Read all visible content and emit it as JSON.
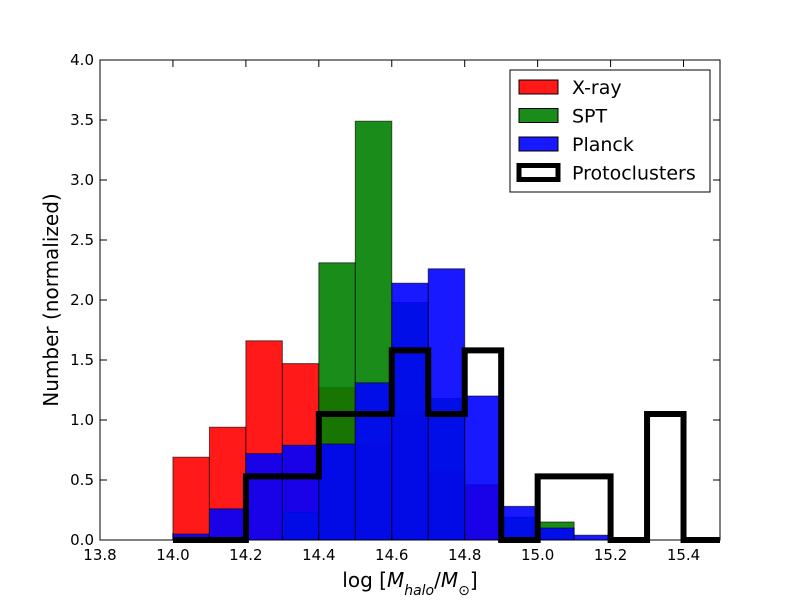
{
  "chart_data": {
    "type": "bar",
    "histogram": true,
    "xlabel": "log [M_halo/M_⊙]",
    "ylabel": "Number (normalized)",
    "xlim": [
      13.8,
      15.5
    ],
    "ylim": [
      0.0,
      4.0
    ],
    "xticks": [
      "13.8",
      "14.0",
      "14.2",
      "14.4",
      "14.6",
      "14.8",
      "15.0",
      "15.2",
      "15.4"
    ],
    "yticks": [
      "0.0",
      "0.5",
      "1.0",
      "1.5",
      "2.0",
      "2.5",
      "3.0",
      "3.5",
      "4.0"
    ],
    "grid": false,
    "legend_position": "top-right",
    "series": [
      {
        "name": "X-ray",
        "color": "#ff0000",
        "style": "filled",
        "bin_edges": [
          14.0,
          14.1,
          14.2,
          14.3,
          14.4,
          14.5,
          14.6,
          14.7,
          14.8,
          14.9
        ],
        "values": [
          0.69,
          0.94,
          1.66,
          1.47,
          1.27,
          0.8,
          1.06,
          0.58,
          0.46
        ]
      },
      {
        "name": "SPT",
        "color": "#008000",
        "style": "filled",
        "bin_edges": [
          14.0,
          14.1,
          14.2,
          14.3,
          14.4,
          14.5,
          14.6,
          14.7,
          14.8,
          14.9,
          15.0,
          15.1
        ],
        "values": [
          0.0,
          0.0,
          0.0,
          0.23,
          2.31,
          3.49,
          1.98,
          1.18,
          0.0,
          0.19,
          0.15
        ]
      },
      {
        "name": "Planck",
        "color": "#0000ff",
        "style": "filled",
        "bin_edges": [
          14.0,
          14.1,
          14.2,
          14.3,
          14.4,
          14.5,
          14.6,
          14.7,
          14.8,
          14.9,
          15.0,
          15.1,
          15.2
        ],
        "values": [
          0.05,
          0.26,
          0.72,
          0.79,
          0.8,
          1.31,
          2.14,
          2.26,
          1.2,
          0.28,
          0.1,
          0.04
        ]
      },
      {
        "name": "Protoclusters",
        "color": "#000000",
        "style": "step",
        "bin_edges": [
          14.0,
          14.1,
          14.2,
          14.3,
          14.4,
          14.5,
          14.6,
          14.7,
          14.8,
          14.9,
          15.0,
          15.1,
          15.2,
          15.3,
          15.4,
          15.5
        ],
        "values": [
          0.0,
          0.0,
          0.53,
          0.53,
          1.05,
          1.05,
          1.58,
          1.05,
          1.58,
          0.0,
          0.53,
          0.53,
          0.0,
          1.05,
          0.0
        ]
      }
    ]
  }
}
